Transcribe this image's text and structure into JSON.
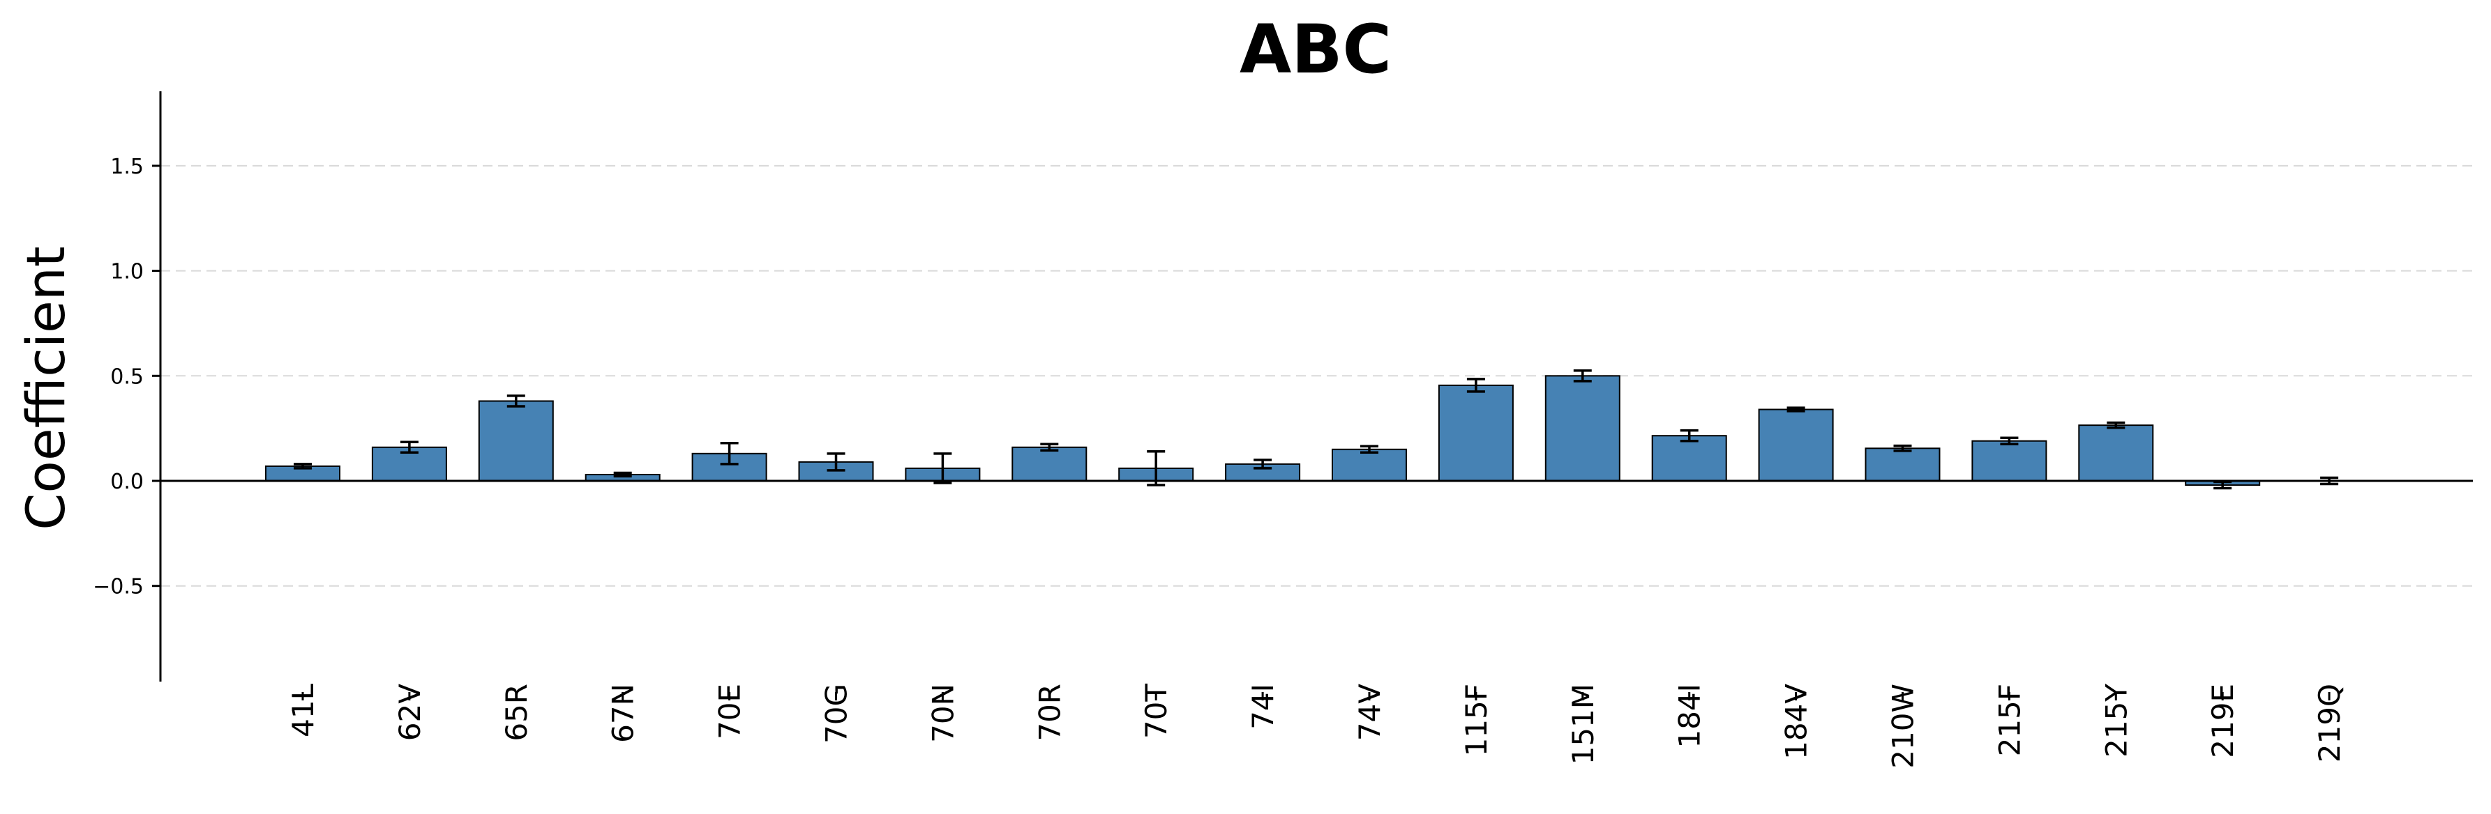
{
  "chart_data": {
    "type": "bar",
    "title": "ABC",
    "xlabel": "",
    "ylabel": "Coefficient",
    "ylim": [
      -0.95,
      1.85
    ],
    "yticks": [
      -0.5,
      0.0,
      0.5,
      1.0,
      1.5
    ],
    "ytick_labels": [
      "−0.5",
      "0.0",
      "0.5",
      "1.0",
      "1.5"
    ],
    "grid": true,
    "legend": "none",
    "bar_color": "#4682b4",
    "categories": [
      "41L",
      "62V",
      "65R",
      "67N",
      "70E",
      "70G",
      "70N",
      "70R",
      "70T",
      "74I",
      "74V",
      "115F",
      "151M",
      "184I",
      "184V",
      "210W",
      "215F",
      "215Y",
      "219E",
      "219Q"
    ],
    "values": [
      0.07,
      0.16,
      0.38,
      0.03,
      0.13,
      0.09,
      0.06,
      0.16,
      0.06,
      0.08,
      0.15,
      0.455,
      0.5,
      0.215,
      0.34,
      0.155,
      0.19,
      0.265,
      -0.02,
      0.0
    ],
    "errors": [
      0.01,
      0.025,
      0.025,
      0.008,
      0.05,
      0.04,
      0.07,
      0.015,
      0.08,
      0.02,
      0.015,
      0.03,
      0.025,
      0.025,
      0.008,
      0.012,
      0.015,
      0.012,
      0.015,
      0.015
    ]
  }
}
